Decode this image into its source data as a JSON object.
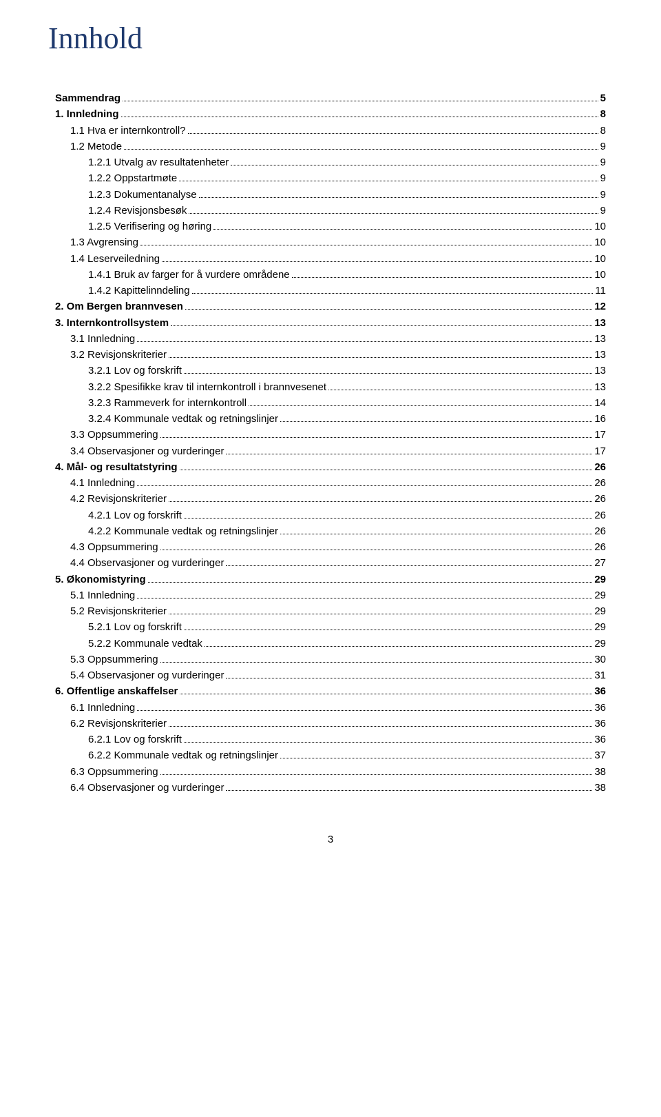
{
  "title": "Innhold",
  "page_number": "3",
  "colors": {
    "title_color": "#1f3a6e",
    "text_color": "#000000",
    "background": "#ffffff"
  },
  "typography": {
    "title_font": "Times New Roman",
    "body_font": "Arial",
    "title_size_pt": 34,
    "body_size_pt": 11
  },
  "toc": [
    {
      "level": 1,
      "label": "Sammendrag",
      "page": "5"
    },
    {
      "level": 1,
      "label": "1. Innledning",
      "page": "8"
    },
    {
      "level": 2,
      "label": "1.1 Hva er internkontroll?",
      "page": "8"
    },
    {
      "level": 2,
      "label": "1.2 Metode",
      "page": "9"
    },
    {
      "level": 3,
      "label": "1.2.1 Utvalg av resultatenheter",
      "page": "9"
    },
    {
      "level": 3,
      "label": "1.2.2 Oppstartmøte",
      "page": "9"
    },
    {
      "level": 3,
      "label": "1.2.3 Dokumentanalyse",
      "page": "9"
    },
    {
      "level": 3,
      "label": "1.2.4 Revisjonsbesøk",
      "page": "9"
    },
    {
      "level": 3,
      "label": "1.2.5 Verifisering og høring",
      "page": "10"
    },
    {
      "level": 2,
      "label": "1.3 Avgrensing",
      "page": "10"
    },
    {
      "level": 2,
      "label": "1.4 Leserveiledning",
      "page": "10"
    },
    {
      "level": 3,
      "label": "1.4.1 Bruk av farger for å vurdere områdene",
      "page": "10"
    },
    {
      "level": 3,
      "label": "1.4.2 Kapittelinndeling",
      "page": "11"
    },
    {
      "level": 1,
      "label": "2. Om Bergen brannvesen",
      "page": "12"
    },
    {
      "level": 1,
      "label": "3. Internkontrollsystem",
      "page": "13"
    },
    {
      "level": 2,
      "label": "3.1 Innledning",
      "page": "13"
    },
    {
      "level": 2,
      "label": "3.2 Revisjonskriterier",
      "page": "13"
    },
    {
      "level": 3,
      "label": "3.2.1 Lov og forskrift",
      "page": "13"
    },
    {
      "level": 3,
      "label": "3.2.2 Spesifikke krav til internkontroll i brannvesenet",
      "page": "13"
    },
    {
      "level": 3,
      "label": "3.2.3 Rammeverk for internkontroll",
      "page": "14"
    },
    {
      "level": 3,
      "label": "3.2.4 Kommunale vedtak og retningslinjer",
      "page": "16"
    },
    {
      "level": 2,
      "label": "3.3 Oppsummering",
      "page": "17"
    },
    {
      "level": 2,
      "label": "3.4 Observasjoner og vurderinger",
      "page": "17"
    },
    {
      "level": 1,
      "label": "4. Mål- og resultatstyring",
      "page": "26"
    },
    {
      "level": 2,
      "label": "4.1 Innledning",
      "page": "26"
    },
    {
      "level": 2,
      "label": "4.2 Revisjonskriterier",
      "page": "26"
    },
    {
      "level": 3,
      "label": "4.2.1 Lov og forskrift",
      "page": "26"
    },
    {
      "level": 3,
      "label": "4.2.2 Kommunale vedtak og retningslinjer",
      "page": "26"
    },
    {
      "level": 2,
      "label": "4.3 Oppsummering",
      "page": "26"
    },
    {
      "level": 2,
      "label": "4.4 Observasjoner og vurderinger",
      "page": "27"
    },
    {
      "level": 1,
      "label": "5. Økonomistyring",
      "page": "29"
    },
    {
      "level": 2,
      "label": "5.1 Innledning",
      "page": "29"
    },
    {
      "level": 2,
      "label": "5.2 Revisjonskriterier",
      "page": "29"
    },
    {
      "level": 3,
      "label": "5.2.1 Lov og forskrift",
      "page": "29"
    },
    {
      "level": 3,
      "label": "5.2.2 Kommunale vedtak",
      "page": "29"
    },
    {
      "level": 2,
      "label": "5.3 Oppsummering",
      "page": "30"
    },
    {
      "level": 2,
      "label": "5.4 Observasjoner og vurderinger",
      "page": "31"
    },
    {
      "level": 1,
      "label": "6. Offentlige anskaffelser",
      "page": "36"
    },
    {
      "level": 2,
      "label": "6.1 Innledning",
      "page": "36"
    },
    {
      "level": 2,
      "label": "6.2 Revisjonskriterier",
      "page": "36"
    },
    {
      "level": 3,
      "label": "6.2.1 Lov og forskrift",
      "page": "36"
    },
    {
      "level": 3,
      "label": "6.2.2 Kommunale vedtak og retningslinjer",
      "page": "37"
    },
    {
      "level": 2,
      "label": "6.3 Oppsummering",
      "page": "38"
    },
    {
      "level": 2,
      "label": "6.4 Observasjoner og vurderinger",
      "page": "38"
    }
  ]
}
